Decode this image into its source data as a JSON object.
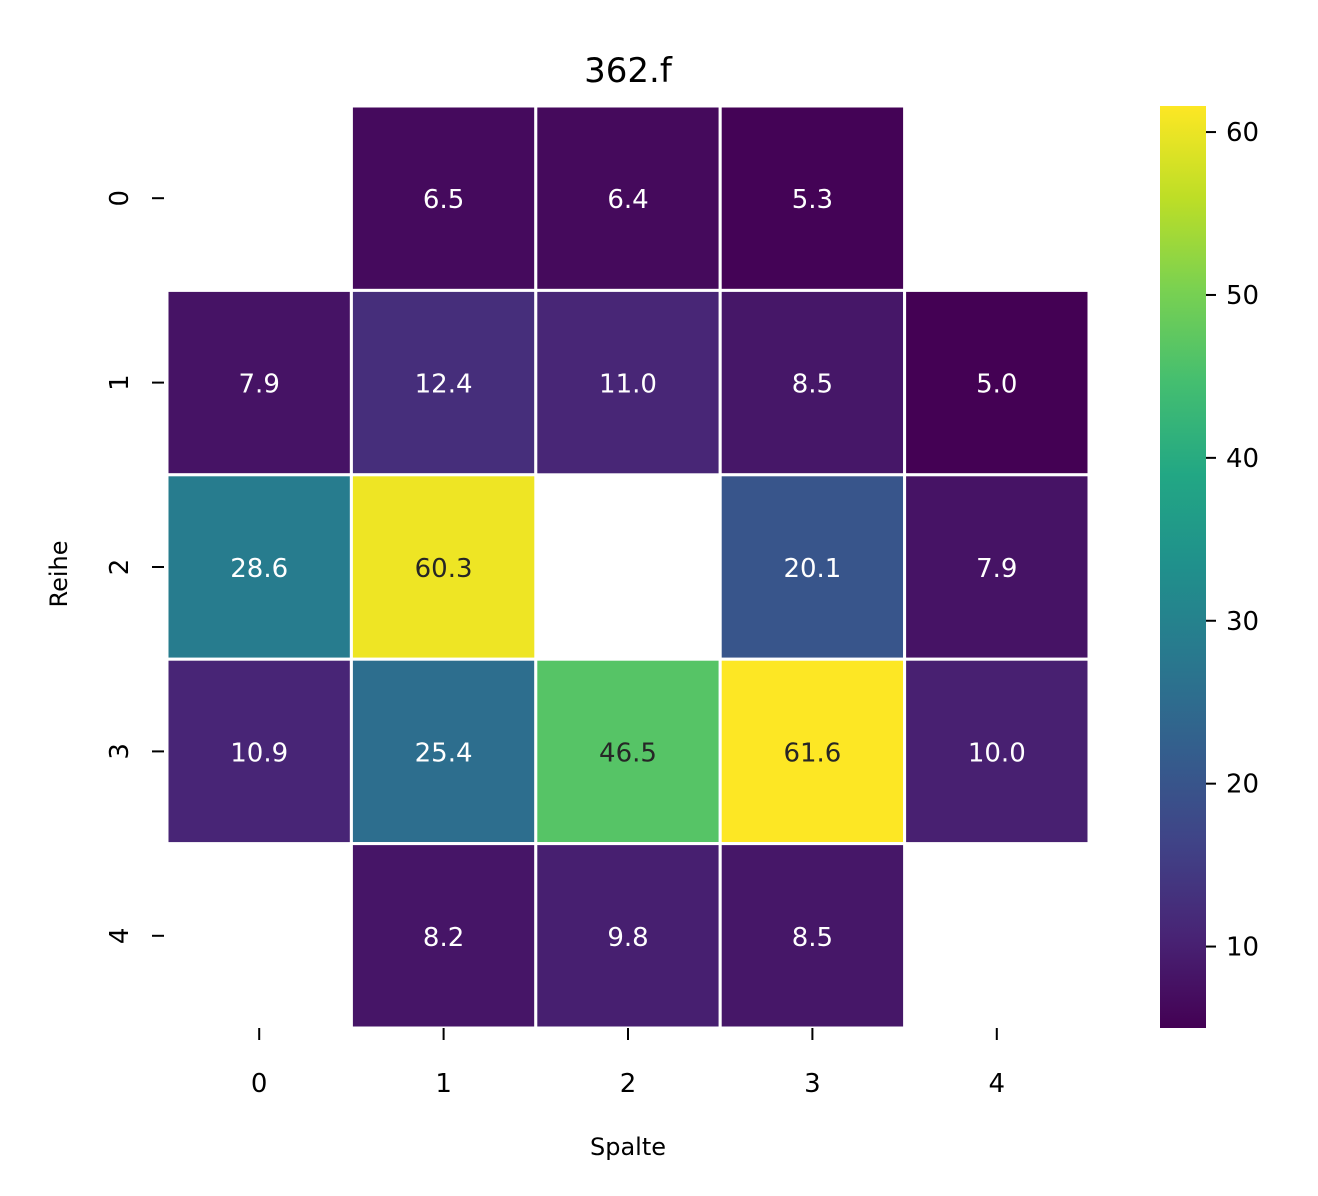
{
  "chart_data": {
    "type": "heatmap",
    "title": "362.f",
    "xlabel": "Spalte",
    "ylabel": "Reihe",
    "x_categories": [
      "0",
      "1",
      "2",
      "3",
      "4"
    ],
    "y_categories": [
      "0",
      "1",
      "2",
      "3",
      "4"
    ],
    "values": [
      [
        null,
        6.5,
        6.4,
        5.3,
        null
      ],
      [
        7.9,
        12.4,
        11.0,
        8.5,
        5.0
      ],
      [
        28.6,
        60.3,
        null,
        20.1,
        7.9
      ],
      [
        10.9,
        25.4,
        46.5,
        61.6,
        10.0
      ],
      [
        null,
        8.2,
        9.8,
        8.5,
        null
      ]
    ],
    "cell_labels": [
      [
        null,
        "6.5",
        "6.4",
        "5.3",
        null
      ],
      [
        "7.9",
        "12.4",
        "11.0",
        "8.5",
        "5.0"
      ],
      [
        "28.6",
        "60.3",
        null,
        "20.1",
        "7.9"
      ],
      [
        "10.9",
        "25.4",
        "46.5",
        "61.6",
        "10.0"
      ],
      [
        null,
        "8.2",
        "9.8",
        "8.5",
        null
      ]
    ],
    "colormap": "viridis",
    "colorbar": {
      "range": [
        5.0,
        61.6
      ],
      "ticks": [
        10,
        20,
        30,
        40,
        50,
        60
      ]
    }
  }
}
